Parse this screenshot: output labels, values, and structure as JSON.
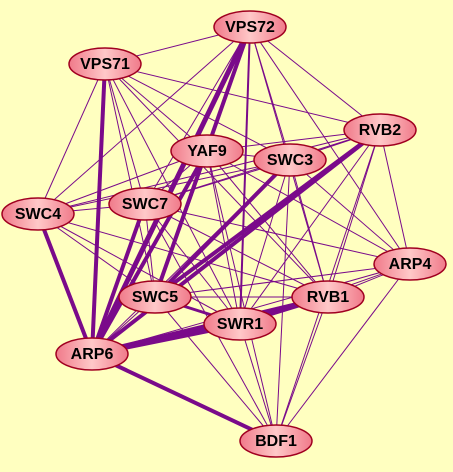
{
  "nodes": [
    {
      "label": "VPS72"
    },
    {
      "label": "VPS71"
    },
    {
      "label": "RVB2"
    },
    {
      "label": "YAF9"
    },
    {
      "label": "SWC3"
    },
    {
      "label": "SWC4"
    },
    {
      "label": "SWC7"
    },
    {
      "label": "ARP4"
    },
    {
      "label": "SWC5"
    },
    {
      "label": "RVB1"
    },
    {
      "label": "SWR1"
    },
    {
      "label": "ARP6"
    },
    {
      "label": "BDF1"
    }
  ]
}
